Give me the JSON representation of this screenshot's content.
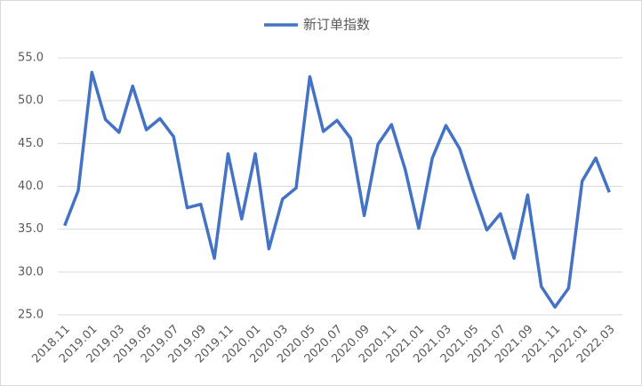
{
  "chart_data": {
    "type": "line",
    "categories": [
      "2018.11",
      null,
      "2019.01",
      null,
      "2019.03",
      null,
      "2019.05",
      null,
      "2019.07",
      null,
      "2019.09",
      null,
      "2019.11",
      null,
      "2020.01",
      null,
      "2020.03",
      null,
      "2020.05",
      null,
      "2020.07",
      null,
      "2020.09",
      null,
      "2020.11",
      null,
      "2021.01",
      null,
      "2021.03",
      null,
      "2021.05",
      null,
      "2021.07",
      null,
      "2021.09",
      null,
      "2021.11",
      null,
      "2022.01",
      null,
      "2022.03"
    ],
    "series": [
      {
        "name": "新订单指数",
        "color": "#4472c4",
        "values": [
          35.4,
          39.5,
          53.3,
          47.8,
          46.3,
          51.7,
          46.6,
          47.9,
          45.8,
          37.5,
          37.9,
          31.6,
          43.8,
          36.2,
          43.8,
          32.7,
          38.5,
          39.8,
          52.8,
          46.4,
          47.7,
          45.6,
          36.6,
          44.9,
          47.2,
          42.0,
          35.1,
          43.3,
          47.1,
          44.4,
          39.5,
          34.9,
          36.8,
          31.6,
          39.0,
          28.3,
          25.9,
          28.1,
          40.6,
          43.3,
          39.3
        ]
      }
    ],
    "ylim": [
      25,
      55
    ],
    "yticks": [
      {
        "value": 25,
        "label": "25.0"
      },
      {
        "value": 30,
        "label": "30.0"
      },
      {
        "value": 35,
        "label": "35.0"
      },
      {
        "value": 40,
        "label": "40.0"
      },
      {
        "value": 45,
        "label": "45.0"
      },
      {
        "value": 50,
        "label": "50.0"
      },
      {
        "value": 55,
        "label": "55.0"
      }
    ],
    "grid": true,
    "legend": "top"
  }
}
